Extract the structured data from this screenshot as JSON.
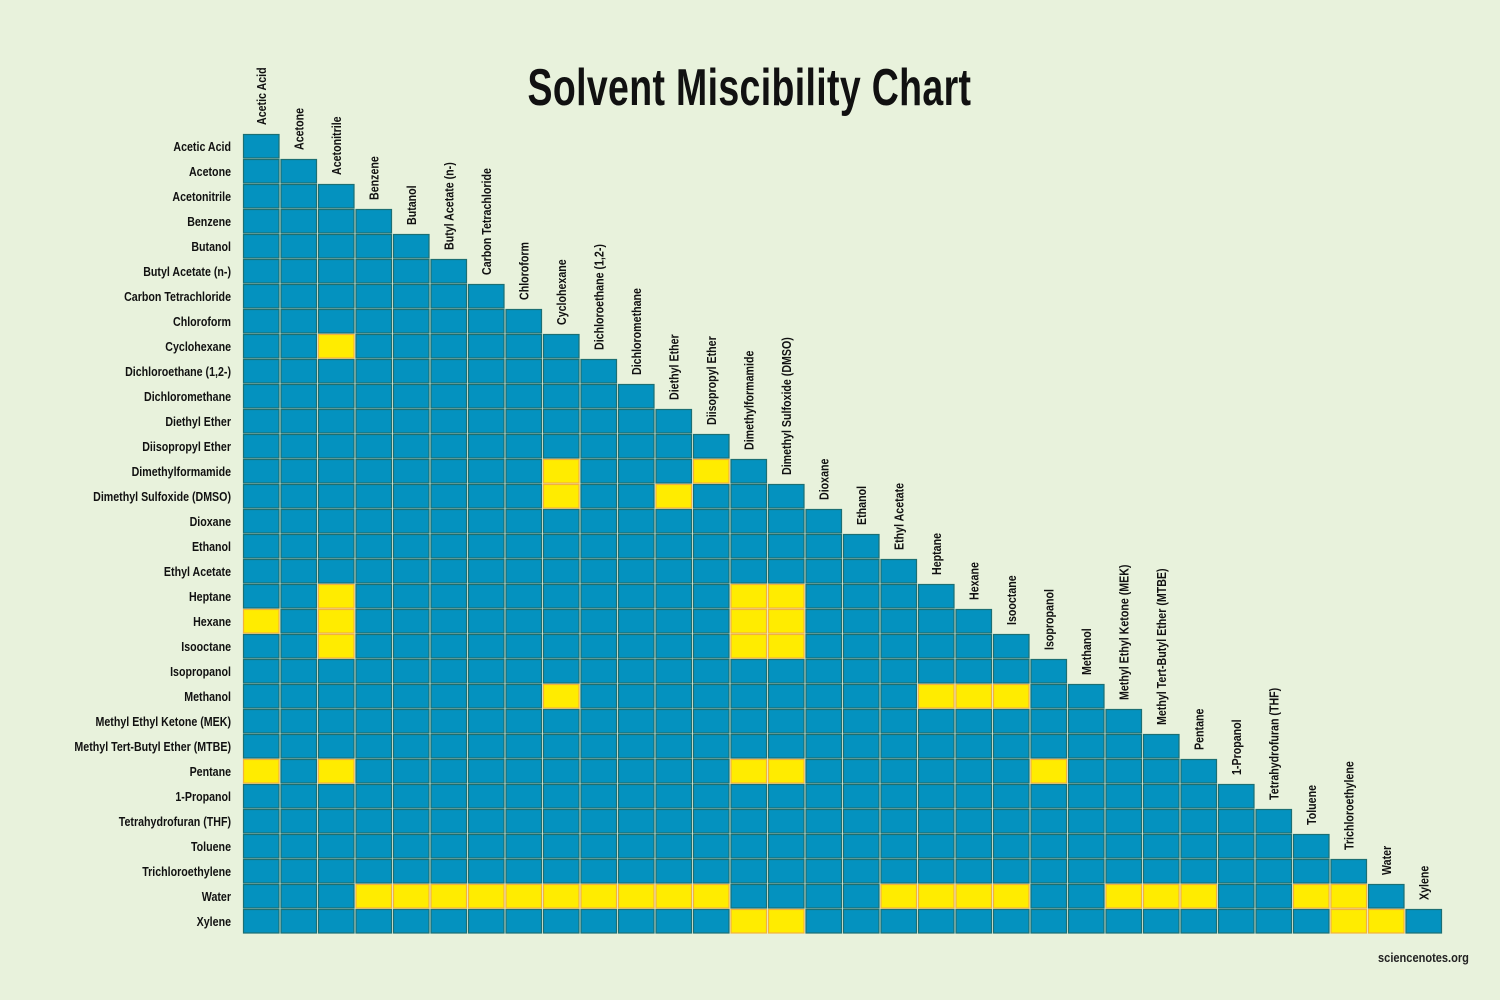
{
  "chart_data": {
    "type": "heatmap",
    "title": "Solvent Miscibility Chart",
    "credit": "sciencenotes.org",
    "solvents": [
      "Acetic Acid",
      "Acetone",
      "Acetonitrile",
      "Benzene",
      "Butanol",
      "Butyl Acetate (n-)",
      "Carbon Tetrachloride",
      "Chloroform",
      "Cyclohexane",
      "Dichloroethane (1,2-)",
      "Dichloromethane",
      "Diethyl Ether",
      "Diisopropyl Ether",
      "Dimethylformamide",
      "Dimethyl Sulfoxide (DMSO)",
      "Dioxane",
      "Ethanol",
      "Ethyl Acetate",
      "Heptane",
      "Hexane",
      "Isooctane",
      "Isopropanol",
      "Methanol",
      "Methyl Ethyl Ketone (MEK)",
      "Methyl Tert-Butyl Ether (MTBE)",
      "Pentane",
      "1-Propanol",
      "Tetrahydrofuran (THF)",
      "Toluene",
      "Trichloroethylene",
      "Water",
      "Xylene"
    ],
    "column_labels": [
      "Acetic Acid",
      "Acetone",
      "Acetonitrile",
      "Benzene",
      "Butanol",
      "Butyl Acetate (n-)",
      "Carbon Tetrachloride",
      "Chloroform",
      "Cyclohexane",
      "Dichloroethane (1,2-)",
      "Dichloromethane",
      "Diethyl Ether",
      "Diisopropyl Ether",
      "Dimethylformamide",
      "Dimethyl Sulfoxide (DMSO)",
      "Dioxane",
      "Ethanol",
      "Ethyl Acetate",
      "Heptane",
      "Hexane",
      "Isooctane",
      "Isopropanol",
      "Methanol",
      "Methyl Ethyl Ketone (MEK)",
      "Methyl Tert-Butyl Ether (MTBE)",
      "Pentane",
      "1-Propanol",
      "Tetrahydrofuran (THF)",
      "Toluene",
      "Trichloroethylene",
      "Water",
      "Xylene"
    ],
    "matrix": "lower-triangular incl. diagonal; all pairs miscible except listed immiscible pairs [row, col] (indices into solvents)",
    "immiscible_pairs": [
      [
        8,
        2
      ],
      [
        13,
        8
      ],
      [
        13,
        12
      ],
      [
        14,
        8
      ],
      [
        14,
        11
      ],
      [
        18,
        2
      ],
      [
        18,
        13
      ],
      [
        18,
        14
      ],
      [
        19,
        0
      ],
      [
        19,
        2
      ],
      [
        19,
        13
      ],
      [
        19,
        14
      ],
      [
        20,
        2
      ],
      [
        20,
        13
      ],
      [
        20,
        14
      ],
      [
        22,
        8
      ],
      [
        22,
        18
      ],
      [
        22,
        19
      ],
      [
        22,
        20
      ],
      [
        25,
        0
      ],
      [
        25,
        2
      ],
      [
        25,
        13
      ],
      [
        25,
        14
      ],
      [
        25,
        21
      ],
      [
        30,
        3
      ],
      [
        30,
        4
      ],
      [
        30,
        5
      ],
      [
        30,
        6
      ],
      [
        30,
        7
      ],
      [
        30,
        8
      ],
      [
        30,
        9
      ],
      [
        30,
        10
      ],
      [
        30,
        11
      ],
      [
        30,
        12
      ],
      [
        30,
        17
      ],
      [
        30,
        18
      ],
      [
        30,
        19
      ],
      [
        30,
        20
      ],
      [
        30,
        23
      ],
      [
        30,
        24
      ],
      [
        30,
        25
      ],
      [
        30,
        28
      ],
      [
        30,
        29
      ],
      [
        31,
        13
      ],
      [
        31,
        14
      ],
      [
        31,
        29
      ],
      [
        31,
        30
      ]
    ],
    "colors": {
      "miscible": "#0492bf",
      "miscible_border": "#1b6f73",
      "immiscible": "#ffec00",
      "immiscible_border": "#f2b23c",
      "background": "#e8f2dc"
    }
  }
}
